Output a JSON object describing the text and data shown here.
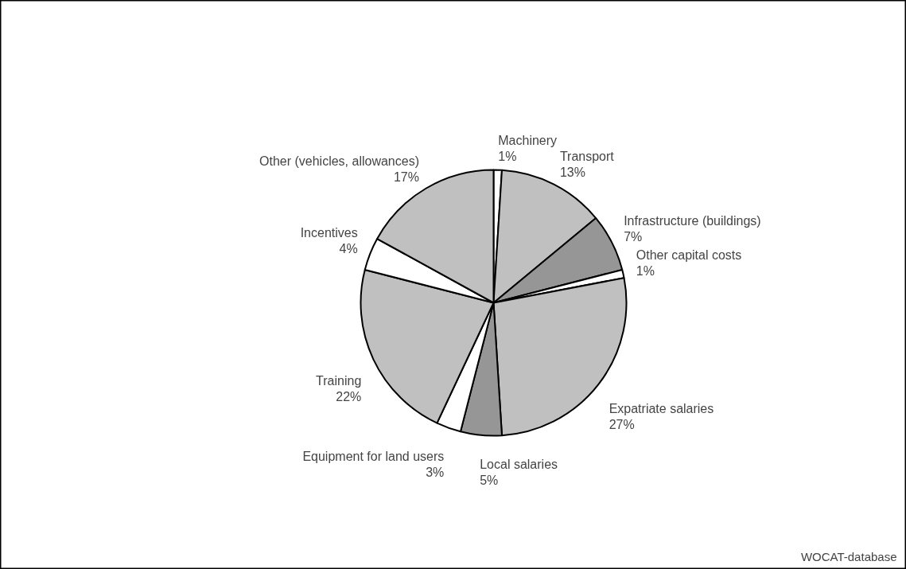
{
  "chart_data": {
    "type": "pie",
    "categories": [
      "Machinery",
      "Transport",
      "Infrastructure (buildings)",
      "Other capital costs",
      "Expatriate salaries",
      "Local salaries",
      "Equipment for land users",
      "Training",
      "Incentives",
      "Other (vehicles, allowances)"
    ],
    "values": [
      1,
      13,
      7,
      1,
      27,
      5,
      3,
      22,
      4,
      17
    ],
    "value_labels": [
      "1%",
      "13%",
      "7%",
      "1%",
      "27%",
      "5%",
      "3%",
      "22%",
      "4%",
      "17%"
    ],
    "colors": [
      "#ffffff",
      "#c0c0c0",
      "#969696",
      "#ffffff",
      "#c0c0c0",
      "#969696",
      "#ffffff",
      "#c0c0c0",
      "#ffffff",
      "#c0c0c0"
    ],
    "annotations": [
      "WOCAT-database"
    ]
  }
}
